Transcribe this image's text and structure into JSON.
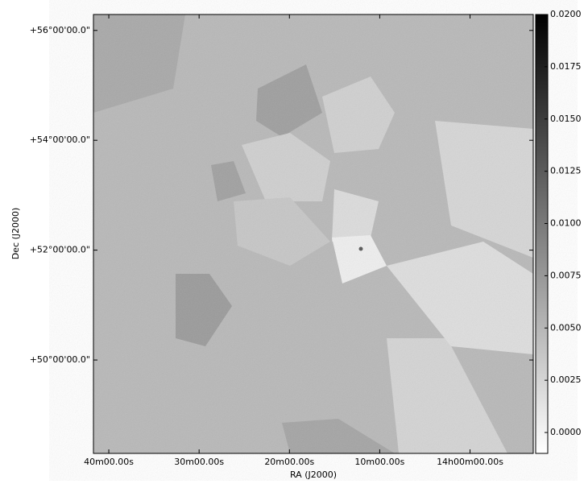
{
  "chart_data": {
    "type": "image",
    "xlabel": "RA (J2000)",
    "ylabel": "Dec (J2000)",
    "xlim": [
      881.7,
      833.0
    ],
    "xticks": [
      {
        "value": 880,
        "label": "40m00.00s"
      },
      {
        "value": 870,
        "label": "30m00.00s"
      },
      {
        "value": 860,
        "label": "20m00.00s"
      },
      {
        "value": 850,
        "label": "10m00.00s"
      },
      {
        "value": 840,
        "label": "14h00m00.00s"
      }
    ],
    "ylim": [
      48.3,
      56.29
    ],
    "yticks": [
      {
        "value": 56,
        "label": "+56°00'00.0\""
      },
      {
        "value": 54,
        "label": "+54°00'00.0\""
      },
      {
        "value": 52,
        "label": "+52°00'00.0\""
      },
      {
        "value": 50,
        "label": "+50°00'00.0\""
      }
    ],
    "colorbar": {
      "lim": [
        -0.001,
        0.02
      ],
      "ticks": [
        {
          "value": 0.02,
          "label": "0.0200"
        },
        {
          "value": 0.0175,
          "label": "0.0175"
        },
        {
          "value": 0.015,
          "label": "0.0150"
        },
        {
          "value": 0.0125,
          "label": "0.0125"
        },
        {
          "value": 0.01,
          "label": "0.0100"
        },
        {
          "value": 0.0075,
          "label": "0.0075"
        },
        {
          "value": 0.005,
          "label": "0.0050"
        },
        {
          "value": 0.0025,
          "label": "0.0025"
        },
        {
          "value": 0,
          "label": "0.0000"
        }
      ]
    }
  }
}
